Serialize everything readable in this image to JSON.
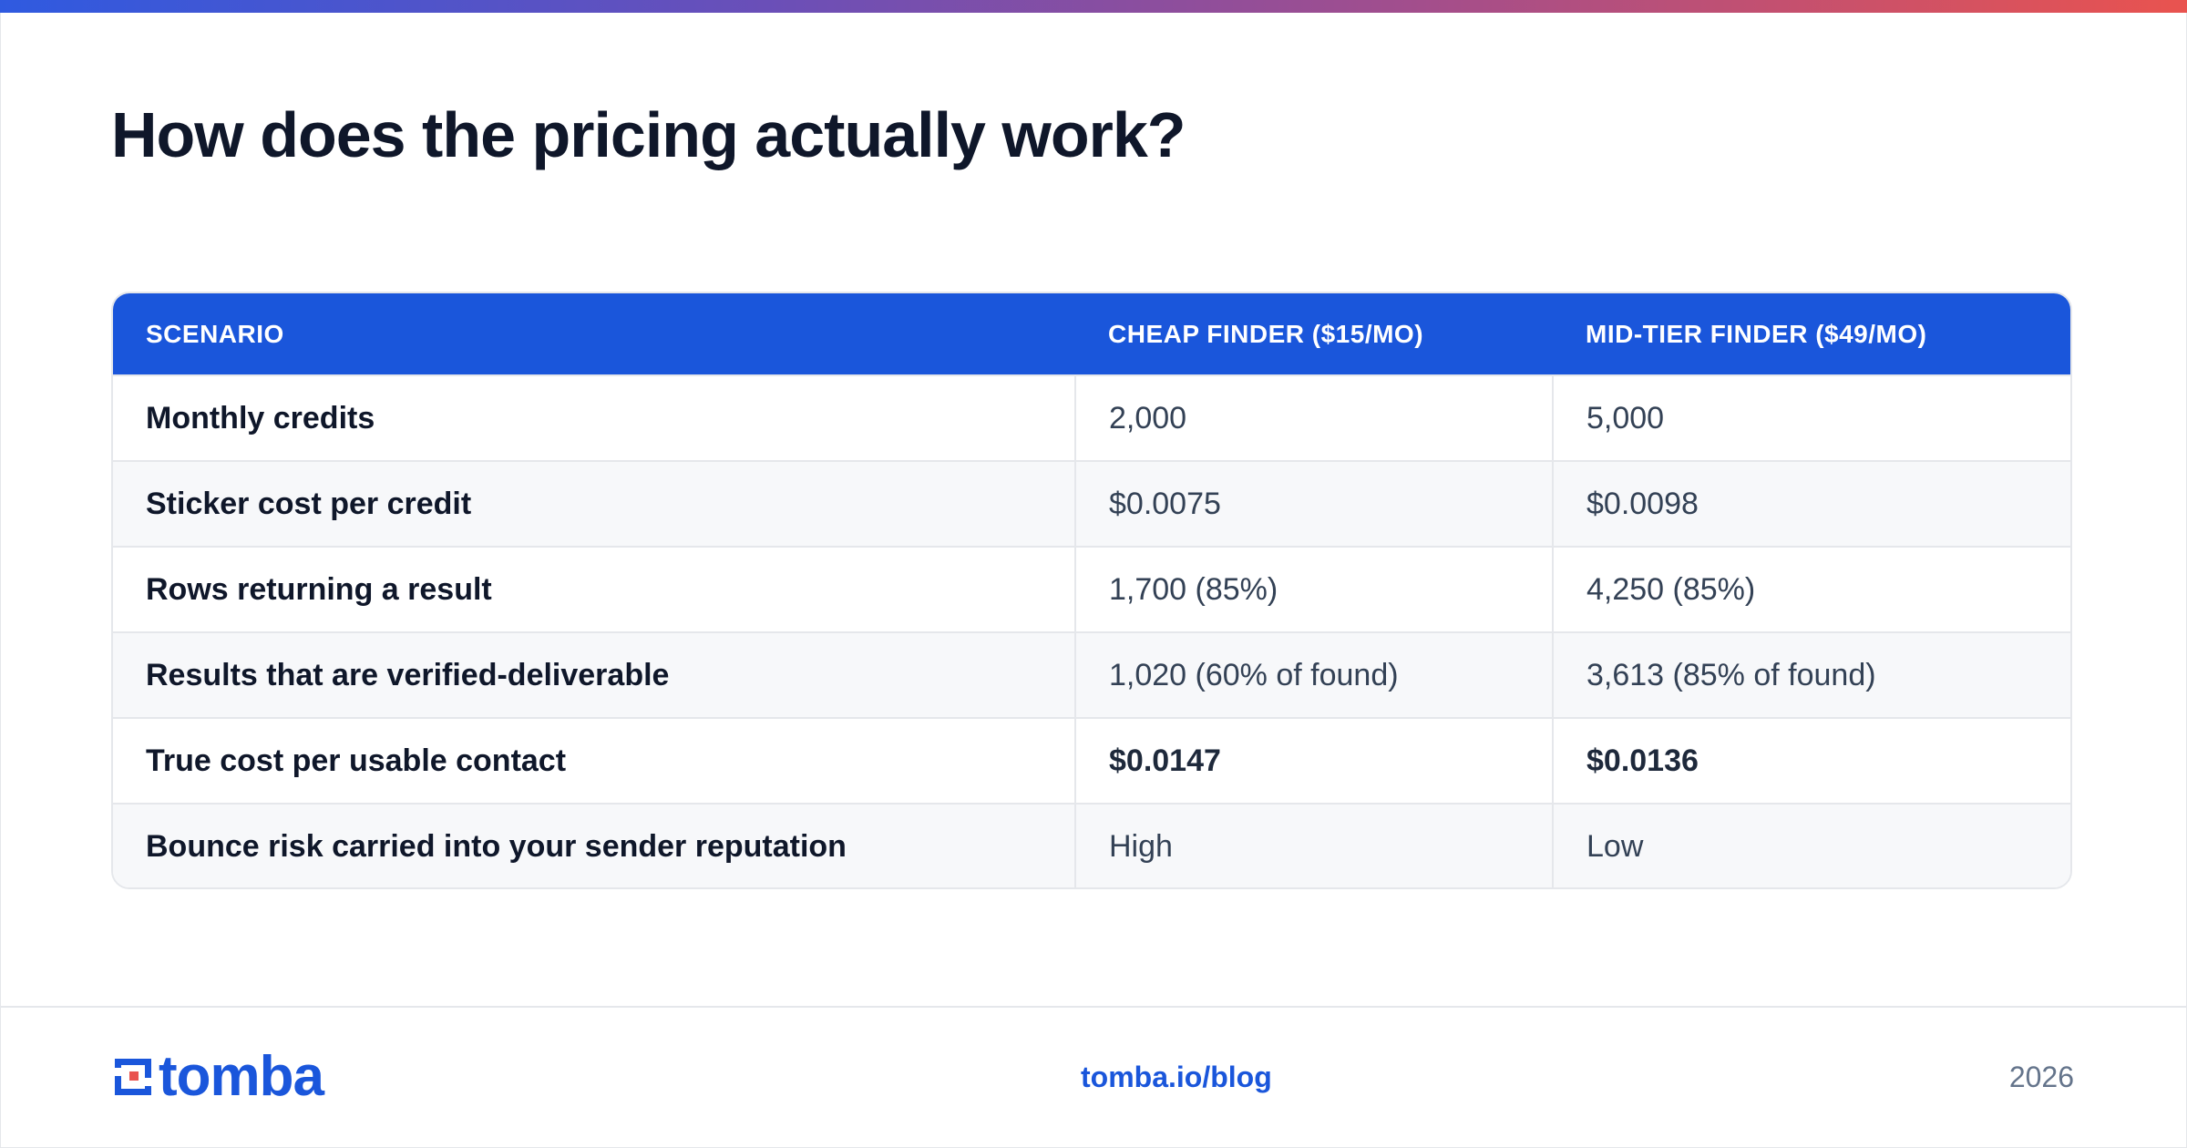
{
  "title": "How does the pricing actually work?",
  "table": {
    "headers": [
      "SCENARIO",
      "CHEAP FINDER ($15/MO)",
      "MID-TIER FINDER ($49/MO)"
    ],
    "rows": [
      [
        "Monthly credits",
        "2,000",
        "5,000"
      ],
      [
        "Sticker cost per credit",
        "$0.0075",
        "$0.0098"
      ],
      [
        "Rows returning a result",
        "1,700 (85%)",
        "4,250 (85%)"
      ],
      [
        "Results that are verified-deliverable",
        "1,020 (60% of found)",
        "3,613 (85% of found)"
      ],
      [
        "True cost per usable contact",
        "$0.0147",
        "$0.0136"
      ],
      [
        "Bounce risk carried into your sender reputation",
        "High",
        "Low"
      ]
    ]
  },
  "footer": {
    "logo_text": "tomba",
    "link": "tomba.io/blog",
    "year": "2026"
  },
  "colors": {
    "accent": "#1a56db",
    "logo_red": "#e9534f",
    "title": "#0f172a"
  }
}
